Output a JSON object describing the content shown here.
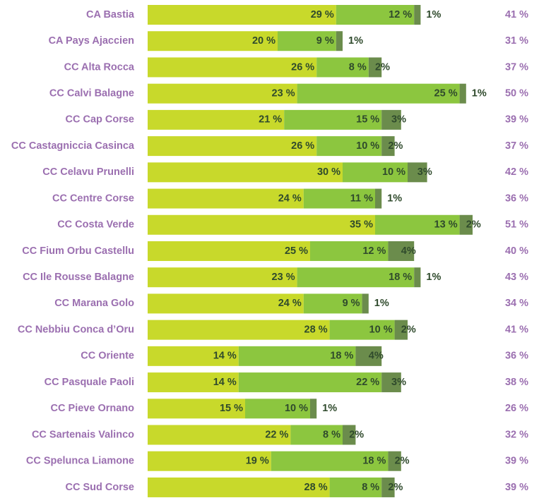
{
  "chart_data": {
    "type": "stacked-bar-horizontal",
    "categories": [
      "CA Bastia",
      "CA Pays Ajaccien",
      "CC Alta Rocca",
      "CC Calvi Balagne",
      "CC Cap Corse",
      "CC Castagniccia Casinca",
      "CC Celavu Prunelli",
      "CC Centre Corse",
      "CC Costa Verde",
      "CC Fium Orbu Castellu",
      "CC Ile Rousse Balagne",
      "CC Marana Golo",
      "CC Nebbiu Conca d’Oru",
      "CC Oriente",
      "CC Pasquale Paoli",
      "CC Pieve Ornano",
      "CC Sartenais Valinco",
      "CC Spelunca Liamone",
      "CC Sud Corse"
    ],
    "series": [
      {
        "color": "#c8d92b",
        "values": [
          29,
          20,
          26,
          23,
          21,
          26,
          30,
          24,
          35,
          25,
          23,
          24,
          28,
          14,
          14,
          15,
          22,
          19,
          28
        ],
        "value_labels": [
          "29 %",
          "20 %",
          "26 %",
          "23 %",
          "21 %",
          "26 %",
          "30 %",
          "24 %",
          "35 %",
          "25 %",
          "23 %",
          "24 %",
          "28 %",
          "14 %",
          "14 %",
          "15 %",
          "22 %",
          "19 %",
          "28 %"
        ]
      },
      {
        "color": "#8cc63f",
        "values": [
          12,
          9,
          8,
          25,
          15,
          10,
          10,
          11,
          13,
          12,
          18,
          9,
          10,
          18,
          22,
          10,
          8,
          18,
          8
        ],
        "value_labels": [
          "12 %",
          "9 %",
          "8 %",
          "25 %",
          "15 %",
          "10 %",
          "10 %",
          "11 %",
          "13 %",
          "12 %",
          "18 %",
          "9 %",
          "10 %",
          "18 %",
          "22 %",
          "10 %",
          "8 %",
          "18 %",
          "8 %"
        ]
      },
      {
        "color": "#6b8c4c",
        "values": [
          1,
          1,
          2,
          1,
          3,
          2,
          3,
          1,
          2,
          4,
          1,
          1,
          2,
          4,
          3,
          1,
          2,
          2,
          2
        ],
        "value_labels": [
          "1%",
          "1%",
          "2%",
          "1%",
          "3%",
          "2%",
          "3%",
          "1%",
          "2%",
          "4%",
          "1%",
          "1%",
          "2%",
          "4%",
          "3%",
          "1%",
          "2%",
          "2%",
          "2%"
        ]
      }
    ],
    "totals": {
      "color": "#9b6fb0",
      "values": [
        41,
        31,
        37,
        50,
        39,
        37,
        42,
        36,
        51,
        40,
        43,
        34,
        41,
        36,
        38,
        26,
        32,
        39,
        39
      ],
      "value_labels": [
        "41 %",
        "31 %",
        "37 %",
        "50 %",
        "39 %",
        "37 %",
        "42 %",
        "36 %",
        "51 %",
        "40 %",
        "43 %",
        "34 %",
        "41 %",
        "36 %",
        "38 %",
        "26 %",
        "32 %",
        "39 %",
        "39 %"
      ]
    }
  }
}
